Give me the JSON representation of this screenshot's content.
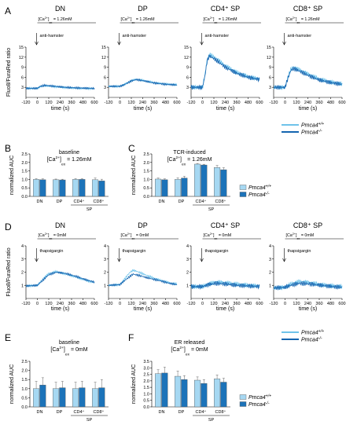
{
  "colors": {
    "wt": "#a6d8f2",
    "ko": "#1c73b9",
    "wt_line": "#6fc3ea",
    "ko_line": "#1565b0"
  },
  "panel_letters": [
    "A",
    "B",
    "C",
    "D",
    "E",
    "F"
  ],
  "legend": {
    "wt": "Pmca4",
    "wt_sup": "+/+",
    "ko": "Pmca4",
    "ko_sup": "-/-"
  },
  "time_ylabel": "Fluo8/FuraRed ratio",
  "time_xlabel": "time (s)",
  "auc_ylabel": "normalized AUC",
  "time_xticks": [
    "-120",
    "0",
    "120",
    "240",
    "360",
    "480",
    "600"
  ],
  "rowA": {
    "yticks": [
      "3",
      "6",
      "9",
      "12",
      "15"
    ],
    "conc_prefix": "[Ca",
    "conc_sup": "2+",
    "conc_mid": "]",
    "conc_sub": "ex",
    "conc_value": " = 1.26mM",
    "stimulus": "anti-hamster",
    "titles": [
      "DN",
      "DP",
      "CD4⁺ SP",
      "CD8⁺ SP"
    ]
  },
  "rowD": {
    "yticks": [
      "1",
      "2",
      "3",
      "4"
    ],
    "conc_value": " = 0mM",
    "stimulus": "thapsigargin",
    "titles": [
      "DN",
      "DP",
      "CD4⁺ SP",
      "CD8⁺ SP"
    ]
  },
  "bar_panels": {
    "B": {
      "title_line1": "baseline",
      "conc_value": " = 1.26mM"
    },
    "C": {
      "title_line1": "TCR-induced",
      "conc_value": " = 1.26mM"
    },
    "E": {
      "title_line1": "baseline",
      "conc_value": " = 0mM"
    },
    "F": {
      "title_line1": "ER released",
      "conc_value": " = 0mM"
    }
  },
  "bar_categories": [
    "DN",
    "DP",
    "CD4⁺",
    "CD8⁺"
  ],
  "bar_group_label": "SP",
  "chart_data": [
    {
      "panel": "A",
      "type": "line",
      "ylim": [
        0,
        15
      ],
      "xlim": [
        -120,
        600
      ],
      "curves": [
        {
          "title": "DN",
          "wt": [
            [
              -120,
              2.7
            ],
            [
              0,
              2.7
            ],
            [
              30,
              3.2
            ],
            [
              80,
              3.5
            ],
            [
              150,
              3.3
            ],
            [
              300,
              2.9
            ],
            [
              450,
              2.7
            ],
            [
              600,
              2.6
            ]
          ],
          "ko": [
            [
              -120,
              2.7
            ],
            [
              0,
              2.7
            ],
            [
              30,
              3.3
            ],
            [
              80,
              3.6
            ],
            [
              150,
              3.4
            ],
            [
              300,
              3.0
            ],
            [
              450,
              2.8
            ],
            [
              600,
              2.7
            ]
          ]
        },
        {
          "title": "DP",
          "wt": [
            [
              -120,
              3.3
            ],
            [
              0,
              3.3
            ],
            [
              40,
              3.8
            ],
            [
              120,
              5.0
            ],
            [
              170,
              5.4
            ],
            [
              240,
              5.1
            ],
            [
              360,
              4.4
            ],
            [
              480,
              4.0
            ],
            [
              600,
              3.8
            ]
          ],
          "ko": [
            [
              -120,
              3.3
            ],
            [
              0,
              3.3
            ],
            [
              40,
              3.7
            ],
            [
              120,
              4.9
            ],
            [
              170,
              5.3
            ],
            [
              240,
              5.0
            ],
            [
              360,
              4.3
            ],
            [
              480,
              3.9
            ],
            [
              600,
              3.7
            ]
          ]
        },
        {
          "title": "CD4+ SP",
          "wt": [
            [
              -120,
              3.0
            ],
            [
              0,
              3.0
            ],
            [
              25,
              6.5
            ],
            [
              50,
              11.5
            ],
            [
              75,
              12.9
            ],
            [
              150,
              11.5
            ],
            [
              240,
              9.5
            ],
            [
              360,
              7.5
            ],
            [
              480,
              6.2
            ],
            [
              600,
              5.5
            ]
          ],
          "ko": [
            [
              -120,
              3.0
            ],
            [
              0,
              3.0
            ],
            [
              25,
              6.3
            ],
            [
              50,
              11.0
            ],
            [
              75,
              12.4
            ],
            [
              150,
              11.0
            ],
            [
              240,
              9.0
            ],
            [
              360,
              7.2
            ],
            [
              480,
              6.0
            ],
            [
              600,
              5.3
            ]
          ]
        },
        {
          "title": "CD8+ SP",
          "wt": [
            [
              -120,
              3.0
            ],
            [
              0,
              3.0
            ],
            [
              30,
              6.0
            ],
            [
              60,
              8.4
            ],
            [
              90,
              9.0
            ],
            [
              150,
              8.3
            ],
            [
              240,
              7.0
            ],
            [
              360,
              5.5
            ],
            [
              480,
              4.6
            ],
            [
              600,
              4.0
            ]
          ],
          "ko": [
            [
              -120,
              3.0
            ],
            [
              0,
              3.0
            ],
            [
              30,
              5.7
            ],
            [
              60,
              8.0
            ],
            [
              90,
              8.6
            ],
            [
              150,
              7.9
            ],
            [
              240,
              6.6
            ],
            [
              360,
              5.2
            ],
            [
              480,
              4.4
            ],
            [
              600,
              3.9
            ]
          ]
        }
      ]
    },
    {
      "panel": "B",
      "type": "bar",
      "ylim": [
        0,
        2.5
      ],
      "yticks": [
        0,
        0.5,
        1.0,
        1.5,
        2.0,
        2.5
      ],
      "categories": [
        "DN",
        "DP",
        "CD4+",
        "CD8+"
      ],
      "series": [
        {
          "name": "Pmca4+/+",
          "values": [
            1.0,
            0.98,
            1.0,
            0.98
          ],
          "errors": [
            0.04,
            0.04,
            0.04,
            0.1
          ]
        },
        {
          "name": "Pmca4-/-",
          "values": [
            0.98,
            0.97,
            1.0,
            0.91
          ],
          "errors": [
            0.05,
            0.04,
            0.04,
            0.1
          ]
        }
      ]
    },
    {
      "panel": "C",
      "type": "bar",
      "ylim": [
        0,
        2.5
      ],
      "yticks": [
        0,
        0.5,
        1.0,
        1.5,
        2.0,
        2.5
      ],
      "categories": [
        "DN",
        "DP",
        "CD4+",
        "CD8+"
      ],
      "series": [
        {
          "name": "Pmca4+/+",
          "values": [
            1.02,
            1.0,
            1.9,
            1.7
          ],
          "errors": [
            0.06,
            0.09,
            0.04,
            0.12
          ]
        },
        {
          "name": "Pmca4-/-",
          "values": [
            0.98,
            1.08,
            1.85,
            1.57
          ],
          "errors": [
            0.05,
            0.1,
            0.04,
            0.12
          ]
        }
      ]
    },
    {
      "panel": "D",
      "type": "line",
      "ylim": [
        0,
        4
      ],
      "xlim": [
        -120,
        600
      ],
      "curves": [
        {
          "title": "DN",
          "wt": [
            [
              -120,
              0.95
            ],
            [
              0,
              1.0
            ],
            [
              60,
              1.5
            ],
            [
              120,
              1.9
            ],
            [
              200,
              2.05
            ],
            [
              300,
              1.85
            ],
            [
              420,
              1.6
            ],
            [
              520,
              1.35
            ],
            [
              600,
              1.2
            ]
          ],
          "ko": [
            [
              -120,
              0.95
            ],
            [
              0,
              1.0
            ],
            [
              60,
              1.4
            ],
            [
              120,
              1.8
            ],
            [
              200,
              2.0
            ],
            [
              300,
              1.9
            ],
            [
              420,
              1.65
            ],
            [
              520,
              1.4
            ],
            [
              600,
              1.25
            ]
          ]
        },
        {
          "title": "DP",
          "wt": [
            [
              -120,
              1.0
            ],
            [
              0,
              1.05
            ],
            [
              40,
              1.4
            ],
            [
              100,
              1.95
            ],
            [
              140,
              2.15
            ],
            [
              200,
              2.0
            ],
            [
              300,
              1.7
            ],
            [
              420,
              1.4
            ],
            [
              520,
              1.2
            ],
            [
              600,
              1.1
            ]
          ],
          "ko": [
            [
              -120,
              1.0
            ],
            [
              0,
              1.05
            ],
            [
              40,
              1.3
            ],
            [
              100,
              1.65
            ],
            [
              140,
              1.85
            ],
            [
              200,
              1.75
            ],
            [
              300,
              1.55
            ],
            [
              420,
              1.35
            ],
            [
              520,
              1.15
            ],
            [
              600,
              1.05
            ]
          ]
        },
        {
          "title": "CD4+ SP",
          "wt": [
            [
              -120,
              0.9
            ],
            [
              0,
              0.9
            ],
            [
              60,
              1.1
            ],
            [
              140,
              1.25
            ],
            [
              240,
              1.2
            ],
            [
              360,
              1.1
            ],
            [
              480,
              1.0
            ],
            [
              600,
              0.95
            ]
          ],
          "ko": [
            [
              -120,
              0.9
            ],
            [
              0,
              0.9
            ],
            [
              60,
              1.05
            ],
            [
              140,
              1.15
            ],
            [
              240,
              1.1
            ],
            [
              360,
              1.0
            ],
            [
              480,
              0.95
            ],
            [
              600,
              0.9
            ]
          ]
        },
        {
          "title": "CD8+ SP",
          "wt": [
            [
              -120,
              0.8
            ],
            [
              0,
              0.85
            ],
            [
              60,
              1.1
            ],
            [
              150,
              1.3
            ],
            [
              260,
              1.2
            ],
            [
              380,
              1.05
            ],
            [
              500,
              0.95
            ],
            [
              600,
              0.9
            ]
          ],
          "ko": [
            [
              -120,
              0.8
            ],
            [
              0,
              0.85
            ],
            [
              60,
              1.0
            ],
            [
              150,
              1.15
            ],
            [
              260,
              1.1
            ],
            [
              380,
              1.0
            ],
            [
              500,
              0.9
            ],
            [
              600,
              0.85
            ]
          ]
        }
      ]
    },
    {
      "panel": "E",
      "type": "bar",
      "ylim": [
        0,
        2.5
      ],
      "yticks": [
        0,
        0.5,
        1.0,
        1.5,
        2.0,
        2.5
      ],
      "categories": [
        "DN",
        "DP",
        "CD4+",
        "CD8+"
      ],
      "series": [
        {
          "name": "Pmca4+/+",
          "values": [
            1.0,
            1.0,
            1.0,
            1.0
          ],
          "errors": [
            0.4,
            0.35,
            0.35,
            0.35
          ]
        },
        {
          "name": "Pmca4-/-",
          "values": [
            1.2,
            1.05,
            1.05,
            1.05
          ],
          "errors": [
            0.4,
            0.35,
            0.35,
            0.45
          ]
        }
      ]
    },
    {
      "panel": "F",
      "type": "bar",
      "ylim": [
        0,
        3.5
      ],
      "yticks": [
        0,
        0.5,
        1.0,
        1.5,
        2.0,
        2.5,
        3.0,
        3.5
      ],
      "categories": [
        "DN",
        "DP",
        "CD4+",
        "CD8+"
      ],
      "series": [
        {
          "name": "Pmca4+/+",
          "values": [
            2.55,
            2.35,
            2.05,
            2.15
          ],
          "errors": [
            0.3,
            0.4,
            0.25,
            0.3
          ]
        },
        {
          "name": "Pmca4-/-",
          "values": [
            2.6,
            2.1,
            1.8,
            1.9
          ],
          "errors": [
            0.45,
            0.3,
            0.3,
            0.3
          ]
        }
      ]
    }
  ]
}
